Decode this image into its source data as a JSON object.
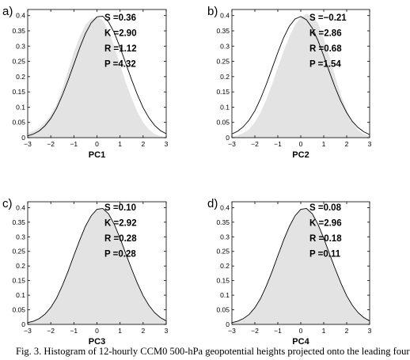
{
  "caption": "Fig. 3. Histogram of 12-hourly CCM0 500-hPa geopotential heights projected onto the leading four",
  "chart_data": [
    {
      "type": "area",
      "panel_label": "a)",
      "xlabel": "PC1",
      "xlim": [
        -3,
        3
      ],
      "ylim": [
        0,
        0.42
      ],
      "xticks": [
        "−3",
        "−2",
        "−1",
        "0",
        "1",
        "2",
        "3"
      ],
      "yticks": [
        "0",
        "0.05",
        "0.1",
        "0.15",
        "0.2",
        "0.25",
        "0.3",
        "0.35",
        "0.4"
      ],
      "grid": false,
      "stats": [
        {
          "label": "S",
          "value": "0.36"
        },
        {
          "label": "K",
          "value": "2.90"
        },
        {
          "label": "R",
          "value": "1.12"
        },
        {
          "label": "P",
          "value": "4.32"
        }
      ],
      "histogram": {
        "x": [
          -3.0,
          -2.75,
          -2.5,
          -2.25,
          -2.0,
          -1.75,
          -1.5,
          -1.25,
          -1.0,
          -0.75,
          -0.5,
          -0.25,
          0.0,
          0.25,
          0.5,
          0.75,
          1.0,
          1.25,
          1.5,
          1.75,
          2.0,
          2.25,
          2.5,
          2.75,
          3.0
        ],
        "y": [
          0.015,
          0.022,
          0.032,
          0.05,
          0.075,
          0.11,
          0.16,
          0.22,
          0.28,
          0.33,
          0.37,
          0.39,
          0.395,
          0.385,
          0.35,
          0.3,
          0.24,
          0.18,
          0.13,
          0.085,
          0.05,
          0.027,
          0.012,
          0.005,
          0.002
        ]
      },
      "curve": {
        "x": [
          -3.0,
          -2.75,
          -2.5,
          -2.25,
          -2.0,
          -1.75,
          -1.5,
          -1.25,
          -1.0,
          -0.75,
          -0.5,
          -0.25,
          0.0,
          0.25,
          0.5,
          0.75,
          1.0,
          1.25,
          1.5,
          1.75,
          2.0,
          2.25,
          2.5,
          2.75,
          3.0
        ],
        "y": [
          0.006,
          0.012,
          0.022,
          0.039,
          0.063,
          0.096,
          0.139,
          0.188,
          0.241,
          0.294,
          0.341,
          0.376,
          0.396,
          0.398,
          0.379,
          0.344,
          0.296,
          0.243,
          0.19,
          0.141,
          0.098,
          0.065,
          0.04,
          0.023,
          0.013
        ]
      }
    },
    {
      "type": "area",
      "panel_label": "b)",
      "xlabel": "PC2",
      "xlim": [
        -3,
        3
      ],
      "ylim": [
        0,
        0.42
      ],
      "xticks": [
        "−3",
        "−2",
        "−1",
        "0",
        "1",
        "2",
        "3"
      ],
      "yticks": [
        "0",
        "0.05",
        "0.1",
        "0.15",
        "0.2",
        "0.25",
        "0.3",
        "0.35",
        "0.4"
      ],
      "grid": false,
      "stats": [
        {
          "label": "S",
          "value": "−0.21"
        },
        {
          "label": "K",
          "value": "2.86"
        },
        {
          "label": "R",
          "value": "0.68"
        },
        {
          "label": "P",
          "value": "1.54"
        }
      ],
      "histogram": {
        "x": [
          -3.0,
          -2.75,
          -2.5,
          -2.25,
          -2.0,
          -1.75,
          -1.5,
          -1.25,
          -1.0,
          -0.75,
          -0.5,
          -0.25,
          0.0,
          0.25,
          0.5,
          0.75,
          1.0,
          1.25,
          1.5,
          1.75,
          2.0,
          2.25,
          2.5,
          2.75,
          3.0
        ],
        "y": [
          0.003,
          0.007,
          0.015,
          0.028,
          0.05,
          0.083,
          0.125,
          0.175,
          0.23,
          0.283,
          0.33,
          0.37,
          0.395,
          0.405,
          0.4,
          0.375,
          0.325,
          0.265,
          0.2,
          0.14,
          0.09,
          0.05,
          0.025,
          0.012,
          0.005
        ]
      },
      "curve": {
        "x": [
          -3.0,
          -2.75,
          -2.5,
          -2.25,
          -2.0,
          -1.75,
          -1.5,
          -1.25,
          -1.0,
          -0.75,
          -0.5,
          -0.25,
          0.0,
          0.25,
          0.5,
          0.75,
          1.0,
          1.25,
          1.5,
          1.75,
          2.0,
          2.25,
          2.5,
          2.75,
          3.0
        ],
        "y": [
          0.012,
          0.021,
          0.036,
          0.058,
          0.088,
          0.128,
          0.175,
          0.227,
          0.279,
          0.327,
          0.365,
          0.389,
          0.397,
          0.386,
          0.359,
          0.318,
          0.268,
          0.215,
          0.164,
          0.119,
          0.082,
          0.053,
          0.033,
          0.019,
          0.01
        ]
      }
    },
    {
      "type": "area",
      "panel_label": "c)",
      "xlabel": "PC3",
      "xlim": [
        -3,
        3
      ],
      "ylim": [
        0,
        0.42
      ],
      "xticks": [
        "−3",
        "−2",
        "−1",
        "0",
        "1",
        "2",
        "3"
      ],
      "yticks": [
        "0",
        "0.05",
        "0.1",
        "0.15",
        "0.2",
        "0.25",
        "0.3",
        "0.35",
        "0.4"
      ],
      "grid": false,
      "stats": [
        {
          "label": "S",
          "value": "0.10"
        },
        {
          "label": "K",
          "value": "2.92"
        },
        {
          "label": "R",
          "value": "0.28"
        },
        {
          "label": "P",
          "value": "0.28"
        }
      ],
      "histogram": {
        "x": [
          -3.0,
          -2.75,
          -2.5,
          -2.25,
          -2.0,
          -1.75,
          -1.5,
          -1.25,
          -1.0,
          -0.75,
          -0.5,
          -0.25,
          0.0,
          0.25,
          0.5,
          0.75,
          1.0,
          1.25,
          1.5,
          1.75,
          2.0,
          2.25,
          2.5,
          2.75,
          3.0
        ],
        "y": [
          0.005,
          0.01,
          0.019,
          0.033,
          0.056,
          0.088,
          0.131,
          0.18,
          0.234,
          0.286,
          0.334,
          0.37,
          0.392,
          0.395,
          0.377,
          0.341,
          0.293,
          0.24,
          0.188,
          0.139,
          0.096,
          0.063,
          0.039,
          0.022,
          0.011
        ]
      },
      "curve": {
        "x": [
          -3.0,
          -2.75,
          -2.5,
          -2.25,
          -2.0,
          -1.75,
          -1.5,
          -1.25,
          -1.0,
          -0.75,
          -0.5,
          -0.25,
          0.0,
          0.25,
          0.5,
          0.75,
          1.0,
          1.25,
          1.5,
          1.75,
          2.0,
          2.25,
          2.5,
          2.75,
          3.0
        ],
        "y": [
          0.006,
          0.011,
          0.02,
          0.035,
          0.058,
          0.09,
          0.133,
          0.182,
          0.236,
          0.288,
          0.336,
          0.372,
          0.394,
          0.397,
          0.379,
          0.343,
          0.295,
          0.242,
          0.19,
          0.141,
          0.098,
          0.065,
          0.04,
          0.023,
          0.012
        ]
      }
    },
    {
      "type": "area",
      "panel_label": "d)",
      "xlabel": "PC4",
      "xlim": [
        -3,
        3
      ],
      "ylim": [
        0,
        0.42
      ],
      "xticks": [
        "−3",
        "−2",
        "−1",
        "0",
        "1",
        "2",
        "3"
      ],
      "yticks": [
        "0",
        "0.05",
        "0.1",
        "0.15",
        "0.2",
        "0.25",
        "0.3",
        "0.35",
        "0.4"
      ],
      "grid": false,
      "stats": [
        {
          "label": "S",
          "value": "0.08"
        },
        {
          "label": "K",
          "value": "2.96"
        },
        {
          "label": "R",
          "value": "0.18"
        },
        {
          "label": "P",
          "value": "0.11"
        }
      ],
      "histogram": {
        "x": [
          -3.0,
          -2.75,
          -2.5,
          -2.25,
          -2.0,
          -1.75,
          -1.5,
          -1.25,
          -1.0,
          -0.75,
          -0.5,
          -0.25,
          0.0,
          0.25,
          0.5,
          0.75,
          1.0,
          1.25,
          1.5,
          1.75,
          2.0,
          2.25,
          2.5,
          2.75,
          3.0
        ],
        "y": [
          0.005,
          0.01,
          0.018,
          0.032,
          0.054,
          0.087,
          0.129,
          0.179,
          0.233,
          0.286,
          0.334,
          0.371,
          0.393,
          0.396,
          0.378,
          0.342,
          0.294,
          0.241,
          0.188,
          0.139,
          0.096,
          0.063,
          0.039,
          0.022,
          0.011
        ]
      },
      "curve": {
        "x": [
          -3.0,
          -2.75,
          -2.5,
          -2.25,
          -2.0,
          -1.75,
          -1.5,
          -1.25,
          -1.0,
          -0.75,
          -0.5,
          -0.25,
          0.0,
          0.25,
          0.5,
          0.75,
          1.0,
          1.25,
          1.5,
          1.75,
          2.0,
          2.25,
          2.5,
          2.75,
          3.0
        ],
        "y": [
          0.006,
          0.011,
          0.02,
          0.034,
          0.057,
          0.089,
          0.132,
          0.181,
          0.235,
          0.288,
          0.335,
          0.372,
          0.394,
          0.397,
          0.379,
          0.343,
          0.295,
          0.242,
          0.19,
          0.141,
          0.098,
          0.065,
          0.04,
          0.023,
          0.012
        ]
      }
    }
  ],
  "colors": {
    "histogram_fill": "#e3e3e3",
    "curve_stroke": "#000000",
    "axis": "#000000"
  }
}
